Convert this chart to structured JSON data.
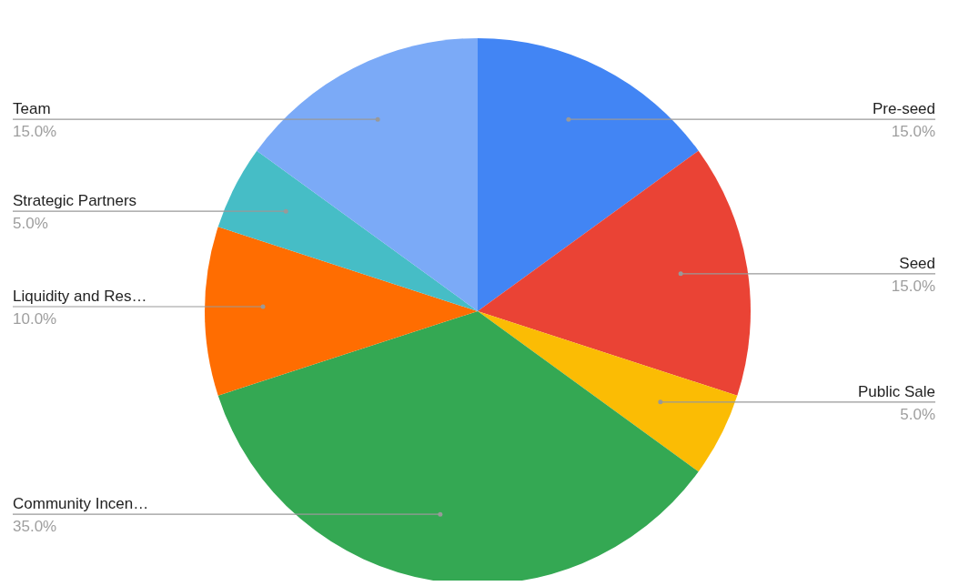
{
  "chart_data": {
    "type": "pie",
    "categories": [
      "Pre-seed",
      "Seed",
      "Public Sale",
      "Community Incen…",
      "Liquidity and Res…",
      "Strategic Partners",
      "Team"
    ],
    "values": [
      15,
      15,
      5,
      35,
      10,
      5,
      15
    ],
    "value_labels": [
      "15.0%",
      "15.0%",
      "5.0%",
      "35.0%",
      "10.0%",
      "5.0%",
      "15.0%"
    ],
    "colors": [
      "#4285f4",
      "#ea4335",
      "#fbbc04",
      "#34a853",
      "#ff6d01",
      "#46bdc6",
      "#7baaf7"
    ]
  }
}
